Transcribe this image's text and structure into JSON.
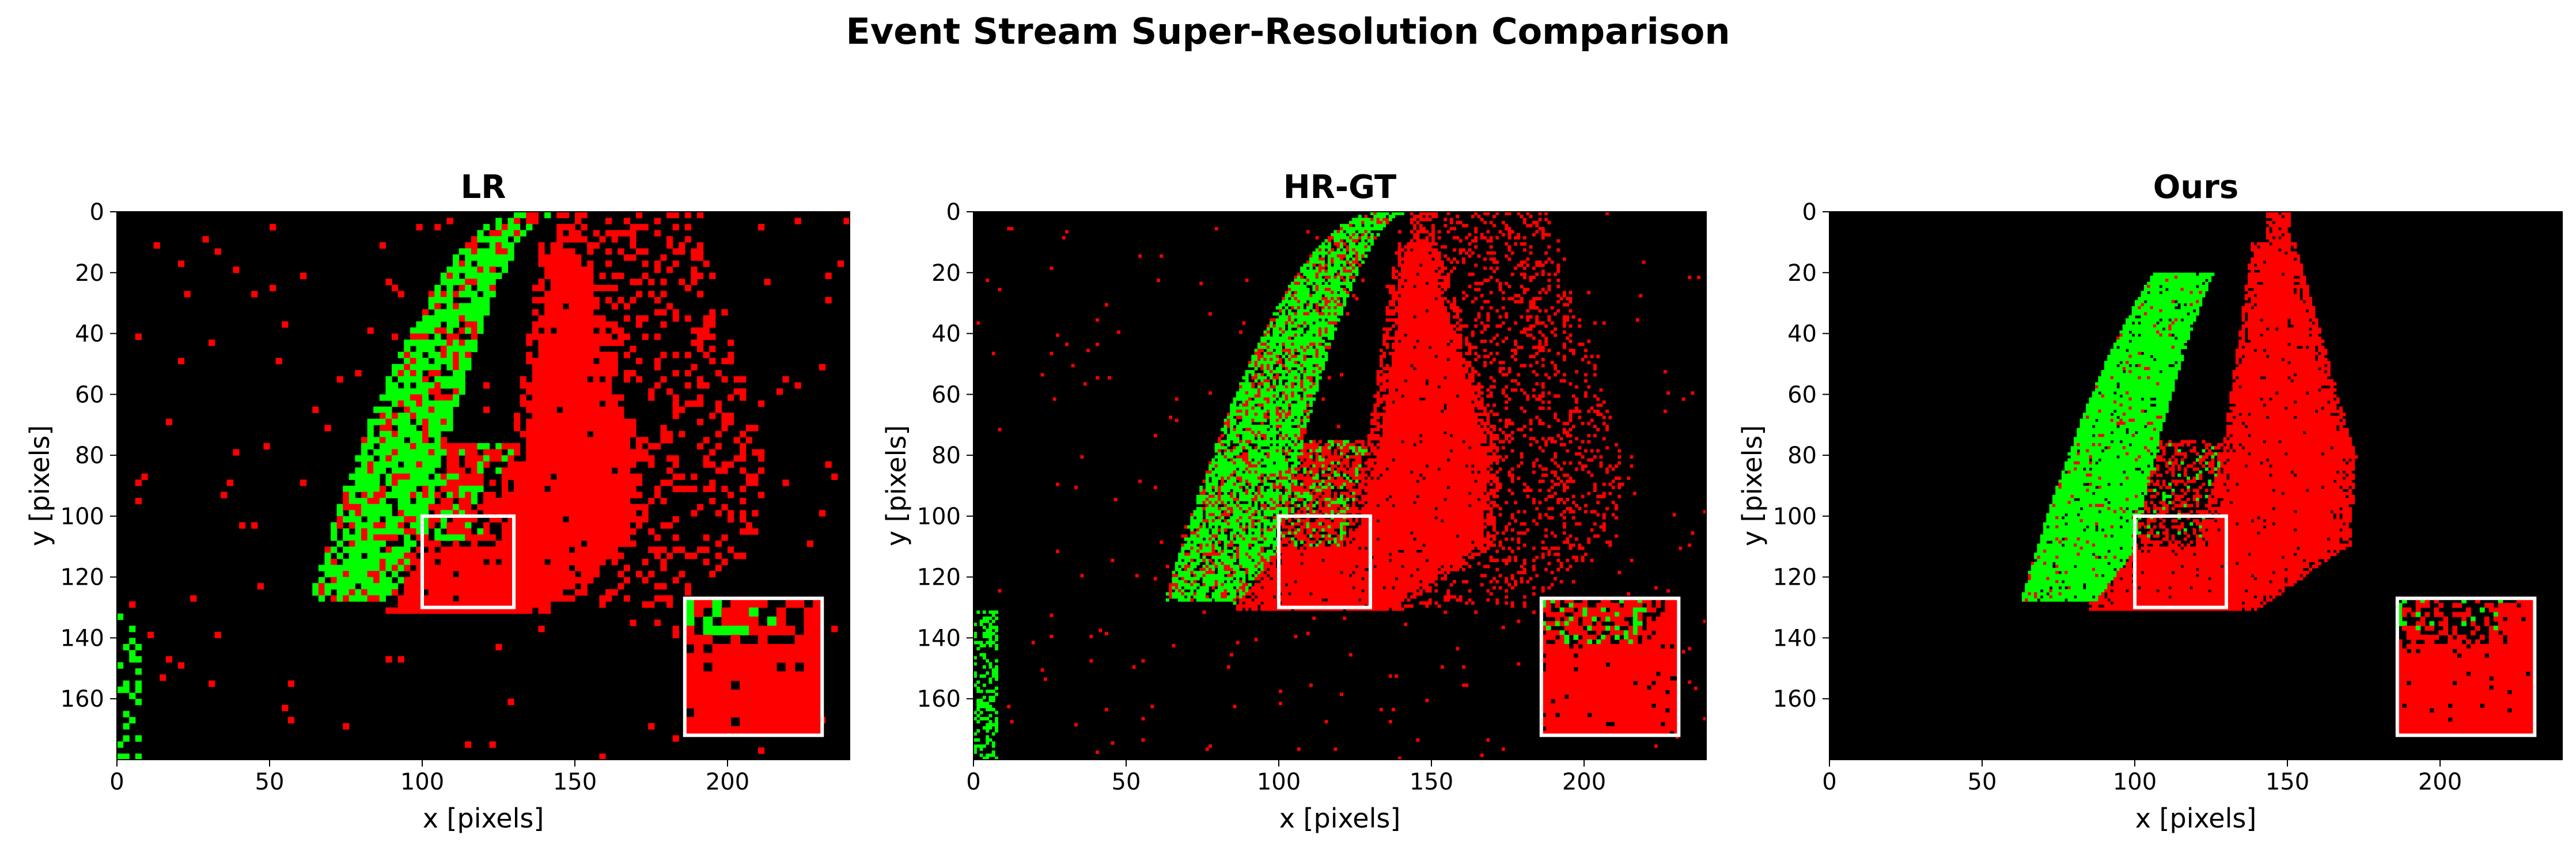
{
  "figure": {
    "title": "Event Stream Super-Resolution Comparison"
  },
  "colors": {
    "background": "#000000",
    "positive_event": "#00ff00",
    "negative_event": "#ff0000",
    "inset_border": "#ffffff"
  },
  "chart_data": [
    {
      "type": "heatmap",
      "title": "LR",
      "xlabel": "x [pixels]",
      "ylabel": "y [pixels]",
      "xlim": [
        0,
        240
      ],
      "ylim": [
        180,
        0
      ],
      "xticks": [
        0,
        50,
        100,
        150,
        200
      ],
      "yticks": [
        0,
        20,
        40,
        60,
        80,
        100,
        120,
        140,
        160
      ],
      "grid": false,
      "zoom_box": {
        "x": [
          100,
          130
        ],
        "y": [
          100,
          130
        ]
      },
      "inset": {
        "x": [
          186,
          231
        ],
        "y": [
          127,
          172
        ],
        "shows_region": "zoom_box"
      },
      "event_resolution": "low",
      "regions": [
        {
          "polarity": "positive",
          "shape": "band",
          "x_from": [
            62,
            140
          ],
          "x_to": [
            95,
            138
          ],
          "y_range": [
            0,
            128
          ]
        },
        {
          "polarity": "negative",
          "shape": "wedge",
          "x_range": [
            80,
            175
          ],
          "y_range": [
            0,
            130
          ]
        },
        {
          "polarity": "positive",
          "shape": "edge",
          "x_range": [
            0,
            8
          ],
          "y_range": [
            130,
            180
          ]
        }
      ]
    },
    {
      "type": "heatmap",
      "title": "HR-GT",
      "xlabel": "x [pixels]",
      "ylabel": "y [pixels]",
      "xlim": [
        0,
        240
      ],
      "ylim": [
        180,
        0
      ],
      "xticks": [
        0,
        50,
        100,
        150,
        200
      ],
      "yticks": [
        0,
        20,
        40,
        60,
        80,
        100,
        120,
        140,
        160
      ],
      "grid": false,
      "zoom_box": {
        "x": [
          100,
          130
        ],
        "y": [
          100,
          130
        ]
      },
      "inset": {
        "x": [
          186,
          231
        ],
        "y": [
          127,
          172
        ],
        "shows_region": "zoom_box"
      },
      "event_resolution": "high",
      "regions": [
        {
          "polarity": "positive",
          "shape": "band",
          "x_from": [
            62,
            140
          ],
          "x_to": [
            95,
            138
          ],
          "y_range": [
            0,
            128
          ]
        },
        {
          "polarity": "negative",
          "shape": "wedge",
          "x_range": [
            80,
            175
          ],
          "y_range": [
            0,
            130
          ]
        },
        {
          "polarity": "positive",
          "shape": "edge",
          "x_range": [
            0,
            6
          ],
          "y_range": [
            130,
            180
          ]
        }
      ]
    },
    {
      "type": "heatmap",
      "title": "Ours",
      "xlabel": "x [pixels]",
      "ylabel": "y [pixels]",
      "xlim": [
        0,
        240
      ],
      "ylim": [
        180,
        0
      ],
      "xticks": [
        0,
        50,
        100,
        150,
        200
      ],
      "yticks": [
        0,
        20,
        40,
        60,
        80,
        100,
        120,
        140,
        160
      ],
      "grid": false,
      "zoom_box": {
        "x": [
          100,
          130
        ],
        "y": [
          100,
          130
        ]
      },
      "inset": {
        "x": [
          186,
          231
        ],
        "y": [
          127,
          172
        ],
        "shows_region": "zoom_box"
      },
      "event_resolution": "high",
      "regions": [
        {
          "polarity": "positive",
          "shape": "band",
          "x_from": [
            60,
            130
          ],
          "x_to": [
            90,
            130
          ],
          "y_range": [
            20,
            128
          ]
        },
        {
          "polarity": "negative",
          "shape": "wedge",
          "x_range": [
            80,
            175
          ],
          "y_range": [
            0,
            130
          ]
        }
      ]
    }
  ]
}
